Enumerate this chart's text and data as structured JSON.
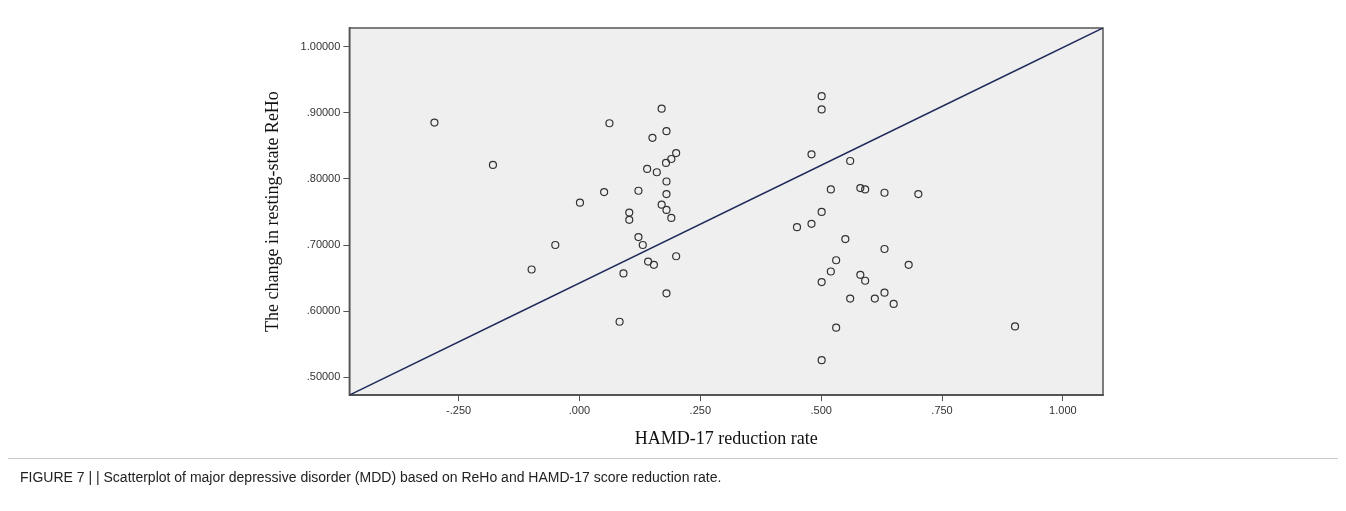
{
  "chart_data": {
    "type": "scatter",
    "xlabel": "HAMD-17 reduction rate",
    "ylabel": "The change in resting-state ReHo",
    "annotations": [
      "FIGURE 7 | | Scatterplot of major depressive disorder (MDD) based on ReHo and HAMD-17 score reduction rate."
    ],
    "xlim": [
      -0.476,
      1.083
    ],
    "ylim": [
      0.473,
      1.028
    ],
    "xticks": [
      {
        "value": -0.25,
        "label": "-.250"
      },
      {
        "value": 0,
        "label": ".000"
      },
      {
        "value": 0.25,
        "label": ".250"
      },
      {
        "value": 0.5,
        "label": ".500"
      },
      {
        "value": 0.75,
        "label": ".750"
      },
      {
        "value": 1,
        "label": "1.000"
      }
    ],
    "yticks": [
      {
        "value": 0.5,
        "label": ".50000"
      },
      {
        "value": 0.6,
        "label": ".60000"
      },
      {
        "value": 0.7,
        "label": ".70000"
      },
      {
        "value": 0.8,
        "label": ".80000"
      },
      {
        "value": 0.9,
        "label": ".90000"
      },
      {
        "value": 1,
        "label": "1.00000"
      }
    ],
    "grid": false,
    "legend": false,
    "marker": "circle",
    "series": [
      {
        "color": "#333333",
        "x": [
          -0.3,
          0.062,
          -0.179,
          0.151,
          0.14,
          0.16,
          0.051,
          0.122,
          0.001,
          0.103,
          0.103,
          -0.05,
          0.122,
          0.131,
          0.142,
          0.154,
          -0.099,
          0.091,
          0.083,
          0.17,
          0.18,
          0.2,
          0.19,
          0.179,
          0.18,
          0.18,
          0.17,
          0.18,
          0.19,
          0.2,
          0.18,
          0.501,
          0.501,
          0.48,
          0.56,
          0.52,
          0.581,
          0.591,
          0.631,
          0.701,
          0.501,
          0.48,
          0.45,
          0.55,
          0.631,
          0.681,
          0.531,
          0.52,
          0.581,
          0.591,
          0.501,
          0.631,
          0.56,
          0.611,
          0.65,
          0.531,
          0.501,
          0.901
        ],
        "values": [
          0.885,
          0.884,
          0.821,
          0.862,
          0.815,
          0.81,
          0.78,
          0.782,
          0.764,
          0.749,
          0.738,
          0.7,
          0.712,
          0.7,
          0.675,
          0.67,
          0.663,
          0.657,
          0.584,
          0.906,
          0.872,
          0.839,
          0.83,
          0.824,
          0.796,
          0.777,
          0.761,
          0.753,
          0.741,
          0.683,
          0.627,
          0.925,
          0.905,
          0.837,
          0.827,
          0.784,
          0.786,
          0.784,
          0.779,
          0.777,
          0.75,
          0.732,
          0.727,
          0.709,
          0.694,
          0.67,
          0.677,
          0.66,
          0.655,
          0.646,
          0.644,
          0.628,
          0.619,
          0.619,
          0.611,
          0.575,
          0.526,
          0.577
        ]
      },
      {
        "type": "line",
        "color": "#1f2a5a",
        "marker": "none",
        "x": [
          -0.476,
          1.083
        ],
        "values": [
          0.473,
          1.028
        ]
      }
    ]
  }
}
